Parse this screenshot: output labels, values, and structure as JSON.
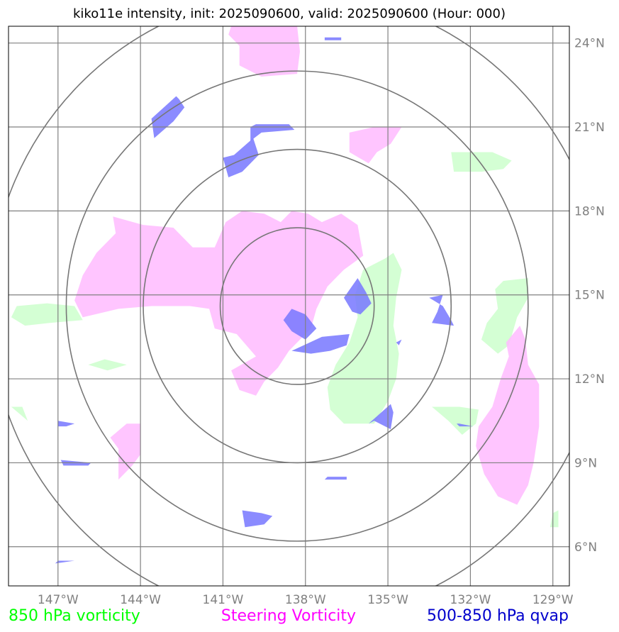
{
  "chart_data": {
    "type": "map",
    "title": "kiko11e intensity, init: 2025090600, valid: 2025090600 (Hour: 000)",
    "storm": "kiko11e",
    "init": "2025090600",
    "valid": "2025090600",
    "forecast_hour": "000",
    "lon_range": [
      -148.8,
      -128.4
    ],
    "lat_range": [
      4.6,
      24.6
    ],
    "x_ticks": [
      {
        "lon": -147,
        "label": "147°W"
      },
      {
        "lon": -144,
        "label": "144°W"
      },
      {
        "lon": -141,
        "label": "141°W"
      },
      {
        "lon": -138,
        "label": "138°W"
      },
      {
        "lon": -135,
        "label": "135°W"
      },
      {
        "lon": -132,
        "label": "132°W"
      },
      {
        "lon": -129,
        "label": "129°W"
      }
    ],
    "y_ticks": [
      {
        "lat": 6,
        "label": "6°N"
      },
      {
        "lat": 9,
        "label": "9°N"
      },
      {
        "lat": 12,
        "label": "12°N"
      },
      {
        "lat": 15,
        "label": "15°N"
      },
      {
        "lat": 18,
        "label": "18°N"
      },
      {
        "lat": 21,
        "label": "21°N"
      },
      {
        "lat": 24,
        "label": "24°N"
      }
    ],
    "range_rings": {
      "center": {
        "lon": -138.3,
        "lat": 14.6
      },
      "radii_deg": [
        2.8,
        5.6,
        8.4,
        11.2
      ]
    },
    "layers": [
      {
        "name": "850 hPa vorticity",
        "color": "#00ff00",
        "fill": "#ccffcc",
        "polygons": [
          [
            [
              -135.1,
              16.3
            ],
            [
              -135.9,
              15.9
            ],
            [
              -136.2,
              15.0
            ],
            [
              -136.1,
              14.2
            ],
            [
              -136.4,
              13.3
            ],
            [
              -136.9,
              12.5
            ],
            [
              -137.2,
              11.7
            ],
            [
              -137.1,
              10.9
            ],
            [
              -136.6,
              10.4
            ],
            [
              -135.5,
              10.4
            ],
            [
              -135.0,
              11.2
            ],
            [
              -134.7,
              12.0
            ],
            [
              -134.6,
              12.9
            ],
            [
              -134.8,
              13.9
            ],
            [
              -134.7,
              14.9
            ],
            [
              -134.5,
              15.9
            ],
            [
              -134.8,
              16.5
            ]
          ],
          [
            [
              -131.2,
              20.1
            ],
            [
              -132.7,
              20.1
            ],
            [
              -132.6,
              19.4
            ],
            [
              -131.6,
              19.4
            ],
            [
              -130.8,
              19.5
            ],
            [
              -130.5,
              19.8
            ]
          ],
          [
            [
              -129.9,
              15.6
            ],
            [
              -130.8,
              15.5
            ],
            [
              -131.1,
              15.2
            ],
            [
              -131.0,
              14.5
            ],
            [
              -131.4,
              14.0
            ],
            [
              -131.6,
              13.4
            ],
            [
              -131.0,
              12.9
            ],
            [
              -130.6,
              13.2
            ],
            [
              -130.3,
              14.2
            ],
            [
              -129.9,
              14.9
            ]
          ],
          [
            [
              -148.5,
              14.6
            ],
            [
              -147.4,
              14.7
            ],
            [
              -146.4,
              14.6
            ],
            [
              -146.1,
              14.1
            ],
            [
              -147.3,
              14.0
            ],
            [
              -148.2,
              13.9
            ],
            [
              -148.7,
              14.2
            ]
          ],
          [
            [
              -132.4,
              11.0
            ],
            [
              -133.4,
              11.0
            ],
            [
              -132.8,
              10.5
            ],
            [
              -132.3,
              10.0
            ],
            [
              -131.8,
              10.4
            ],
            [
              -131.7,
              10.9
            ]
          ],
          [
            [
              -145.3,
              12.7
            ],
            [
              -145.9,
              12.5
            ],
            [
              -145.2,
              12.3
            ],
            [
              -144.5,
              12.5
            ]
          ],
          [
            [
              -148.7,
              11.0
            ],
            [
              -148.3,
              11.0
            ],
            [
              -148.1,
              10.5
            ]
          ],
          [
            [
              -129.0,
              7.2
            ],
            [
              -129.1,
              6.7
            ],
            [
              -128.8,
              6.7
            ],
            [
              -128.8,
              7.3
            ]
          ]
        ]
      },
      {
        "name": "Steering Vorticity",
        "color": "#ff00ff",
        "fill": "#ffbbff",
        "polygons": [
          [
            [
              -145.0,
              17.8
            ],
            [
              -143.9,
              17.5
            ],
            [
              -142.8,
              17.4
            ],
            [
              -142.1,
              16.7
            ],
            [
              -141.3,
              16.7
            ],
            [
              -140.9,
              17.6
            ],
            [
              -140.3,
              18.0
            ],
            [
              -139.5,
              17.9
            ],
            [
              -138.9,
              17.6
            ],
            [
              -138.5,
              18.0
            ],
            [
              -137.9,
              17.9
            ],
            [
              -137.4,
              17.6
            ],
            [
              -136.7,
              17.9
            ],
            [
              -136.1,
              17.5
            ],
            [
              -135.9,
              16.4
            ],
            [
              -136.6,
              15.9
            ],
            [
              -137.2,
              15.3
            ],
            [
              -137.6,
              14.5
            ],
            [
              -137.8,
              13.8
            ],
            [
              -138.6,
              13.0
            ],
            [
              -139.0,
              12.4
            ],
            [
              -139.5,
              11.9
            ],
            [
              -139.8,
              11.4
            ],
            [
              -140.4,
              11.6
            ],
            [
              -140.7,
              12.3
            ],
            [
              -139.8,
              12.8
            ],
            [
              -140.5,
              13.6
            ],
            [
              -141.3,
              13.8
            ],
            [
              -141.5,
              14.5
            ],
            [
              -142.2,
              14.6
            ],
            [
              -143.6,
              14.6
            ],
            [
              -144.8,
              14.5
            ],
            [
              -146.1,
              14.2
            ],
            [
              -146.4,
              14.8
            ],
            [
              -146.1,
              15.7
            ],
            [
              -145.6,
              16.5
            ],
            [
              -144.9,
              17.2
            ]
          ],
          [
            [
              -140.3,
              24.6
            ],
            [
              -139.2,
              24.6
            ],
            [
              -138.3,
              24.6
            ],
            [
              -138.2,
              23.7
            ],
            [
              -138.3,
              22.9
            ],
            [
              -139.6,
              22.8
            ],
            [
              -140.4,
              23.2
            ],
            [
              -140.4,
              23.9
            ],
            [
              -140.8,
              24.3
            ],
            [
              -140.7,
              24.6
            ]
          ],
          [
            [
              -135.5,
              21.0
            ],
            [
              -134.5,
              21.0
            ],
            [
              -134.9,
              20.4
            ],
            [
              -135.4,
              20.1
            ],
            [
              -135.7,
              19.7
            ],
            [
              -136.4,
              20.1
            ],
            [
              -136.4,
              20.8
            ]
          ],
          [
            [
              -130.2,
              13.9
            ],
            [
              -130.7,
              13.3
            ],
            [
              -130.6,
              12.8
            ],
            [
              -130.9,
              12.0
            ],
            [
              -131.2,
              11.0
            ],
            [
              -131.7,
              10.3
            ],
            [
              -131.8,
              9.6
            ],
            [
              -131.5,
              8.6
            ],
            [
              -131.0,
              7.8
            ],
            [
              -130.3,
              7.5
            ],
            [
              -129.9,
              8.2
            ],
            [
              -129.7,
              9.0
            ],
            [
              -129.5,
              10.3
            ],
            [
              -129.5,
              11.8
            ],
            [
              -129.9,
              12.5
            ],
            [
              -130.0,
              13.4
            ]
          ],
          [
            [
              -144.0,
              10.4
            ],
            [
              -144.0,
              9.3
            ],
            [
              -144.3,
              8.9
            ],
            [
              -144.8,
              8.4
            ],
            [
              -144.8,
              9.5
            ],
            [
              -145.1,
              9.9
            ],
            [
              -144.5,
              10.4
            ]
          ]
        ]
      },
      {
        "name": "500-850 hPa qvap",
        "color": "#0000cc",
        "fill": "#7777ff",
        "polygons": [
          [
            [
              -138.5,
              14.5
            ],
            [
              -138.8,
              14.1
            ],
            [
              -138.5,
              13.7
            ],
            [
              -138.0,
              13.4
            ],
            [
              -137.6,
              13.8
            ],
            [
              -138.0,
              14.3
            ]
          ],
          [
            [
              -142.7,
              22.1
            ],
            [
              -143.6,
              21.3
            ],
            [
              -143.5,
              20.6
            ],
            [
              -142.8,
              21.2
            ],
            [
              -142.4,
              21.7
            ],
            [
              -142.6,
              22.0
            ]
          ],
          [
            [
              -140.0,
              21.0
            ],
            [
              -139.8,
              21.1
            ],
            [
              -138.6,
              21.1
            ],
            [
              -138.4,
              20.9
            ],
            [
              -139.6,
              20.8
            ],
            [
              -140.0,
              20.5
            ]
          ],
          [
            [
              -139.9,
              20.6
            ],
            [
              -139.7,
              20.0
            ],
            [
              -140.3,
              19.4
            ],
            [
              -140.8,
              19.2
            ],
            [
              -141.0,
              19.9
            ],
            [
              -140.6,
              20.0
            ]
          ],
          [
            [
              -136.1,
              15.6
            ],
            [
              -135.8,
              15.1
            ],
            [
              -135.6,
              14.7
            ],
            [
              -136.0,
              14.3
            ],
            [
              -136.3,
              14.4
            ],
            [
              -136.6,
              14.9
            ]
          ],
          [
            [
              -136.4,
              13.6
            ],
            [
              -137.4,
              13.5
            ],
            [
              -138.5,
              13.0
            ],
            [
              -137.8,
              12.9
            ],
            [
              -137.1,
              13.0
            ],
            [
              -136.5,
              13.2
            ]
          ],
          [
            [
              -133.0,
              15.0
            ],
            [
              -133.5,
              14.9
            ],
            [
              -133.0,
              14.6
            ],
            [
              -132.7,
              14.1
            ],
            [
              -132.6,
              13.9
            ],
            [
              -133.4,
              14.0
            ],
            [
              -133.2,
              14.4
            ]
          ],
          [
            [
              -134.9,
              10.2
            ],
            [
              -135.5,
              10.5
            ],
            [
              -135.7,
              10.4
            ],
            [
              -134.9,
              11.1
            ],
            [
              -134.8,
              10.8
            ]
          ],
          [
            [
              -147.0,
              10.5
            ],
            [
              -146.4,
              10.4
            ],
            [
              -146.7,
              10.3
            ],
            [
              -147.0,
              10.3
            ]
          ],
          [
            [
              -145.8,
              9.0
            ],
            [
              -146.9,
              9.1
            ],
            [
              -146.8,
              8.9
            ],
            [
              -145.9,
              8.9
            ]
          ],
          [
            [
              -132.4,
              10.4
            ],
            [
              -131.9,
              10.3
            ],
            [
              -132.4,
              10.3
            ],
            [
              -132.5,
              10.4
            ]
          ],
          [
            [
              -136.5,
              8.5
            ],
            [
              -137.2,
              8.5
            ],
            [
              -137.3,
              8.4
            ],
            [
              -136.5,
              8.4
            ]
          ],
          [
            [
              -139.6,
              7.2
            ],
            [
              -140.3,
              7.3
            ],
            [
              -140.2,
              6.7
            ],
            [
              -139.5,
              6.8
            ],
            [
              -139.2,
              7.1
            ]
          ],
          [
            [
              -147.0,
              5.5
            ],
            [
              -146.4,
              5.5
            ],
            [
              -147.1,
              5.4
            ]
          ],
          [
            [
              -136.7,
              24.2
            ],
            [
              -137.3,
              24.2
            ],
            [
              -137.3,
              24.1
            ],
            [
              -136.7,
              24.1
            ]
          ],
          [
            [
              -134.6,
              13.2
            ],
            [
              -134.7,
              13.3
            ],
            [
              -134.5,
              13.4
            ]
          ]
        ]
      }
    ],
    "legend": [
      {
        "label": "850 hPa vorticity",
        "color": "#00ff00",
        "position": "bottom-left"
      },
      {
        "label": "Steering Vorticity",
        "color": "#ff00ff",
        "position": "bottom-center"
      },
      {
        "label": "500-850 hPa qvap",
        "color": "#0000cc",
        "position": "bottom-right"
      }
    ],
    "grid": true
  }
}
